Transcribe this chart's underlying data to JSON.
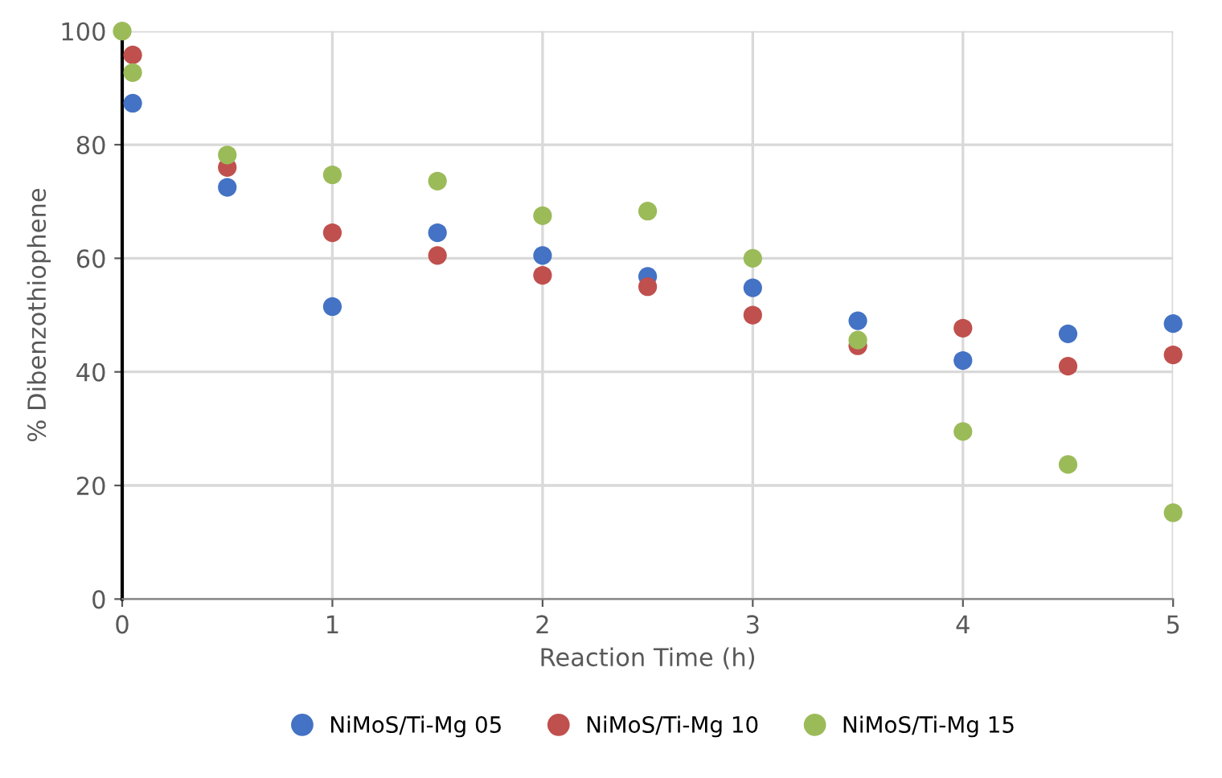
{
  "chart_data": {
    "type": "scatter",
    "xlabel": "Reaction Time (h)",
    "ylabel": "% Dibenzothiophene",
    "xlim": [
      0,
      5
    ],
    "xticks": [
      0,
      1,
      2,
      3,
      4,
      5
    ],
    "ylim": [
      0,
      100
    ],
    "yticks": [
      0,
      20,
      40,
      60,
      80,
      100
    ],
    "grid": true,
    "legend": "bottom",
    "marker": "circle",
    "series": [
      {
        "name": "NiMoS/Ti-Mg 05",
        "color": "#4472c4",
        "x": [
          0.05,
          0.5,
          1,
          1.5,
          2,
          2.5,
          3,
          3.5,
          4,
          4.5,
          5
        ],
        "values": [
          87.3,
          72.5,
          51.5,
          64.5,
          60.5,
          56.8,
          54.8,
          49,
          42,
          46.7,
          48.5
        ]
      },
      {
        "name": "NiMoS/Ti-Mg 10",
        "color": "#c0504d",
        "x": [
          0.05,
          0.5,
          1,
          1.5,
          2,
          2.5,
          3,
          3.5,
          4,
          4.5,
          5
        ],
        "values": [
          95.8,
          76,
          64.5,
          60.5,
          57,
          55,
          50,
          44.6,
          47.7,
          41,
          43
        ]
      },
      {
        "name": "NiMoS/Ti-Mg 15",
        "color": "#9bbb59",
        "x": [
          0,
          0.05,
          0.5,
          1,
          1.5,
          2,
          2.5,
          3,
          3.5,
          4,
          4.5,
          5
        ],
        "values": [
          100,
          92.7,
          78.2,
          74.7,
          73.6,
          67.5,
          68.3,
          60,
          45.6,
          29.5,
          23.7,
          15.2
        ]
      }
    ]
  }
}
